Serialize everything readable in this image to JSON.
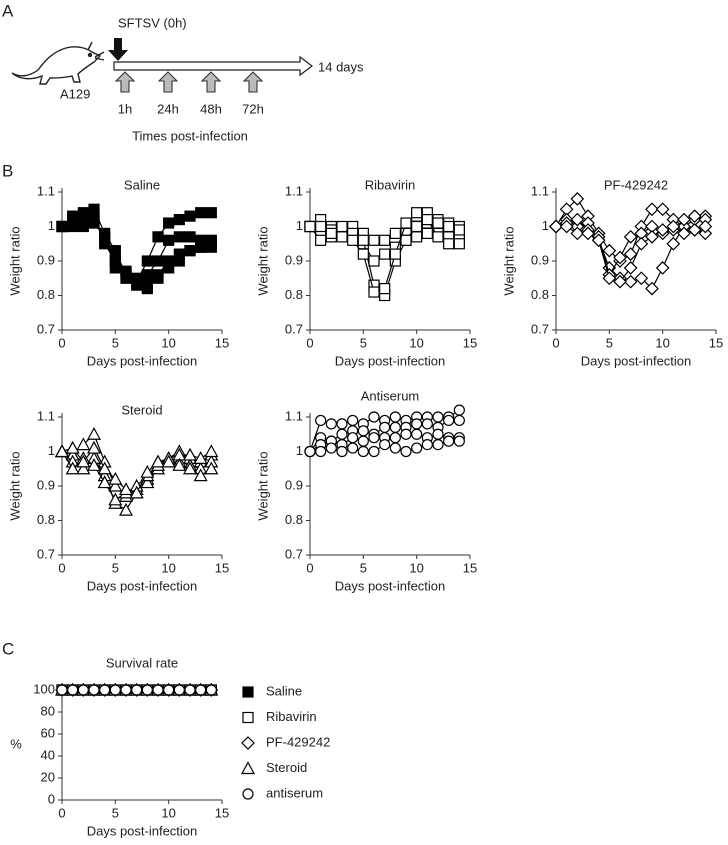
{
  "panel_labels": [
    "A",
    "B",
    "C"
  ],
  "panel_a": {
    "virus": "SFTSV (0h)",
    "mouse": "A129",
    "duration": "14 days",
    "timepoints": [
      "1h",
      "24h",
      "48h",
      "72h"
    ],
    "caption": "Times post-infection"
  },
  "chart_data": [
    {
      "type": "line",
      "title": "Saline",
      "xlabel": "Days post-infection",
      "ylabel": "Weight ratio",
      "marker": "square",
      "color": "#000000",
      "fill": "#000000",
      "x": [
        0,
        1,
        2,
        3,
        4,
        5,
        6,
        7,
        8,
        9,
        10,
        11,
        12,
        13,
        14
      ],
      "xlim": [
        0,
        15
      ],
      "xticks": [
        0,
        5,
        10,
        15
      ],
      "ylim": [
        0.7,
        1.1
      ],
      "yticks": [
        0.7,
        0.8,
        0.9,
        1,
        1.1
      ],
      "series": [
        {
          "values": [
            1,
            1.03,
            1.02,
            1.05,
            0.98,
            0.93,
            0.86,
            0.84,
            0.86,
            0.9,
            0.96,
            0.97,
            0.97,
            0.96,
            0.96
          ]
        },
        {
          "values": [
            1,
            1,
            1.01,
            1.03,
            0.95,
            0.9,
            0.87,
            0.85,
            0.83,
            0.86,
            0.9,
            0.92,
            0.93,
            0.94,
            0.94
          ]
        },
        {
          "values": [
            1,
            1.01,
            1.04,
            1.02,
            0.97,
            0.88,
            0.85,
            0.83,
            0.82,
            0.85,
            0.88,
            0.9,
            0.93,
            0.94,
            0.95
          ]
        },
        {
          "values": [
            1,
            1.02,
            1,
            1.01,
            0.97,
            0.9,
            0.87,
            0.84,
            0.9,
            0.97,
            1.01,
            1.02,
            1.03,
            1.04,
            1.04
          ]
        }
      ]
    },
    {
      "type": "line",
      "title": "Ribavirin",
      "xlabel": "Days post-infection",
      "ylabel": "Weight ratio",
      "marker": "square",
      "color": "#000000",
      "fill": "#ffffff",
      "x": [
        0,
        1,
        2,
        3,
        4,
        5,
        6,
        7,
        8,
        9,
        10,
        11,
        12,
        13,
        14
      ],
      "xlim": [
        0,
        15
      ],
      "xticks": [
        0,
        5,
        10,
        15
      ],
      "ylim": [
        0.7,
        1.1
      ],
      "yticks": [
        0.7,
        0.8,
        0.9,
        1,
        1.1
      ],
      "series": [
        {
          "values": [
            1,
            1.02,
            1,
            0.99,
            1,
            0.98,
            0.96,
            0.96,
            0.98,
            0.98,
            1.03,
            1.04,
            1.02,
            1.01,
            1
          ]
        },
        {
          "values": [
            1,
            0.98,
            0.97,
            0.98,
            0.97,
            0.95,
            0.9,
            0.92,
            0.94,
            0.96,
            0.97,
            0.98,
            0.98,
            0.97,
            0.97
          ]
        },
        {
          "values": [
            1,
            0.96,
            0.99,
            1,
            0.98,
            0.96,
            0.83,
            0.8,
            0.9,
            0.96,
            1,
            1.01,
            1.01,
            1,
            0.99
          ]
        },
        {
          "values": [
            1,
            1,
            0.98,
            0.97,
            0.96,
            0.92,
            0.81,
            0.82,
            0.92,
            1.01,
            1.04,
            1.02,
            0.97,
            0.95,
            0.95
          ]
        }
      ]
    },
    {
      "type": "line",
      "title": "PF-429242",
      "xlabel": "Days post-infection",
      "ylabel": "Weight ratio",
      "marker": "diamond",
      "color": "#000000",
      "fill": "#ffffff",
      "x": [
        0,
        1,
        2,
        3,
        4,
        5,
        6,
        7,
        8,
        9,
        10,
        11,
        12,
        13,
        14
      ],
      "xlim": [
        0,
        15
      ],
      "xticks": [
        0,
        5,
        10,
        15
      ],
      "ylim": [
        0.7,
        1.1
      ],
      "yticks": [
        0.7,
        0.8,
        0.9,
        1,
        1.1
      ],
      "series": [
        {
          "values": [
            1,
            1.05,
            1.08,
            1.03,
            0.98,
            0.93,
            0.9,
            0.92,
            1,
            1.05,
            1.05,
            1.02,
            1,
            0.99,
            0.98
          ]
        },
        {
          "values": [
            1,
            1.02,
            1,
            1.01,
            0.96,
            0.88,
            0.85,
            0.84,
            0.85,
            0.82,
            0.88,
            0.95,
            1,
            1.02,
            1.03
          ]
        },
        {
          "values": [
            1,
            1.01,
            1.02,
            0.99,
            0.97,
            0.86,
            0.91,
            0.97,
            0.98,
            1,
            0.98,
            0.99,
            1.02,
            1.03,
            1.02
          ]
        },
        {
          "values": [
            1,
            1,
            0.98,
            0.98,
            0.96,
            0.85,
            0.84,
            0.88,
            0.95,
            0.97,
            0.99,
            1,
            0.98,
            0.99,
            1
          ]
        }
      ]
    },
    {
      "type": "line",
      "title": "Steroid",
      "xlabel": "Days post-infection",
      "ylabel": "Weight ratio",
      "marker": "triangle",
      "color": "#000000",
      "fill": "#ffffff",
      "x": [
        0,
        1,
        2,
        3,
        4,
        5,
        6,
        7,
        8,
        9,
        10,
        11,
        12,
        13,
        14
      ],
      "xlim": [
        0,
        15
      ],
      "xticks": [
        0,
        5,
        10,
        15
      ],
      "ylim": [
        0.7,
        1.1
      ],
      "yticks": [
        0.7,
        0.8,
        0.9,
        1,
        1.1
      ],
      "series": [
        {
          "values": [
            1,
            0.99,
            1.02,
            1.05,
            0.97,
            0.9,
            0.87,
            0.89,
            0.92,
            0.97,
            0.98,
            1,
            0.98,
            0.97,
            0.99
          ]
        },
        {
          "values": [
            1,
            0.97,
            0.95,
            0.98,
            0.93,
            0.85,
            0.83,
            0.88,
            0.91,
            0.95,
            0.97,
            0.97,
            0.96,
            0.95,
            0.97
          ]
        },
        {
          "values": [
            1,
            0.95,
            0.98,
            0.96,
            0.91,
            0.86,
            0.88,
            0.9,
            0.93,
            0.96,
            0.98,
            0.99,
            0.99,
            0.98,
            1
          ]
        },
        {
          "values": [
            1,
            1.01,
            0.97,
            1.01,
            0.95,
            0.92,
            0.89,
            0.88,
            0.94,
            0.97,
            0.97,
            0.96,
            0.95,
            0.93,
            0.95
          ]
        }
      ]
    },
    {
      "type": "line",
      "title": "Antiserum",
      "xlabel": "Days post-infection",
      "ylabel": "Weight ratio",
      "marker": "circle",
      "color": "#000000",
      "fill": "#ffffff",
      "x": [
        0,
        1,
        2,
        3,
        4,
        5,
        6,
        7,
        8,
        9,
        10,
        11,
        12,
        13,
        14
      ],
      "xlim": [
        0,
        15
      ],
      "xticks": [
        0,
        5,
        10,
        15
      ],
      "ylim": [
        0.7,
        1.1
      ],
      "yticks": [
        0.7,
        0.8,
        0.9,
        1,
        1.1
      ],
      "series": [
        {
          "values": [
            1,
            1.09,
            1.08,
            1.08,
            1.09,
            1.08,
            1.1,
            1.09,
            1.1,
            1.09,
            1.1,
            1.1,
            1.1,
            1.1,
            1.12
          ]
        },
        {
          "values": [
            1,
            1.04,
            1.03,
            1.05,
            1.06,
            1.06,
            1.05,
            1.07,
            1.07,
            1.07,
            1.08,
            1.08,
            1.07,
            1.09,
            1.09
          ]
        },
        {
          "values": [
            1,
            1.02,
            1.03,
            1.02,
            1.04,
            1.03,
            1.04,
            1.04,
            1.04,
            1.05,
            1.05,
            1.04,
            1.05,
            1.04,
            1.04
          ]
        },
        {
          "values": [
            1,
            1,
            1.01,
            1,
            1.01,
            1,
            1,
            1.02,
            1.01,
            1,
            1.01,
            1.02,
            1.02,
            1.03,
            1.03
          ]
        }
      ]
    },
    {
      "type": "line",
      "title": "Survival rate",
      "xlabel": "Days post-infection",
      "ylabel": "%",
      "legend": "right",
      "x": [
        0,
        1,
        2,
        3,
        4,
        5,
        6,
        7,
        8,
        9,
        10,
        11,
        12,
        13,
        14
      ],
      "xlim": [
        0,
        15
      ],
      "xticks": [
        0,
        5,
        10,
        15
      ],
      "ylim": [
        0,
        100
      ],
      "yticks": [
        0,
        20,
        40,
        60,
        80,
        100
      ],
      "series": [
        {
          "name": "Saline",
          "marker": "square",
          "color": "#000000",
          "fill": "#000000",
          "values": [
            100,
            100,
            100,
            100,
            100,
            100,
            100,
            100,
            100,
            100,
            100,
            100,
            100,
            100,
            100
          ]
        },
        {
          "name": "Ribavirin",
          "marker": "square",
          "color": "#000000",
          "fill": "#ffffff",
          "values": [
            100,
            100,
            100,
            100,
            100,
            100,
            100,
            100,
            100,
            100,
            100,
            100,
            100,
            100,
            100
          ]
        },
        {
          "name": "PF-429242",
          "marker": "diamond",
          "color": "#000000",
          "fill": "#ffffff",
          "values": [
            100,
            100,
            100,
            100,
            100,
            100,
            100,
            100,
            100,
            100,
            100,
            100,
            100,
            100,
            100
          ]
        },
        {
          "name": "Steroid",
          "marker": "triangle",
          "color": "#000000",
          "fill": "#ffffff",
          "values": [
            100,
            100,
            100,
            100,
            100,
            100,
            100,
            100,
            100,
            100,
            100,
            100,
            100,
            100,
            100
          ]
        },
        {
          "name": "antiserum",
          "marker": "circle",
          "color": "#000000",
          "fill": "#ffffff",
          "values": [
            100,
            100,
            100,
            100,
            100,
            100,
            100,
            100,
            100,
            100,
            100,
            100,
            100,
            100,
            100
          ]
        }
      ]
    }
  ]
}
